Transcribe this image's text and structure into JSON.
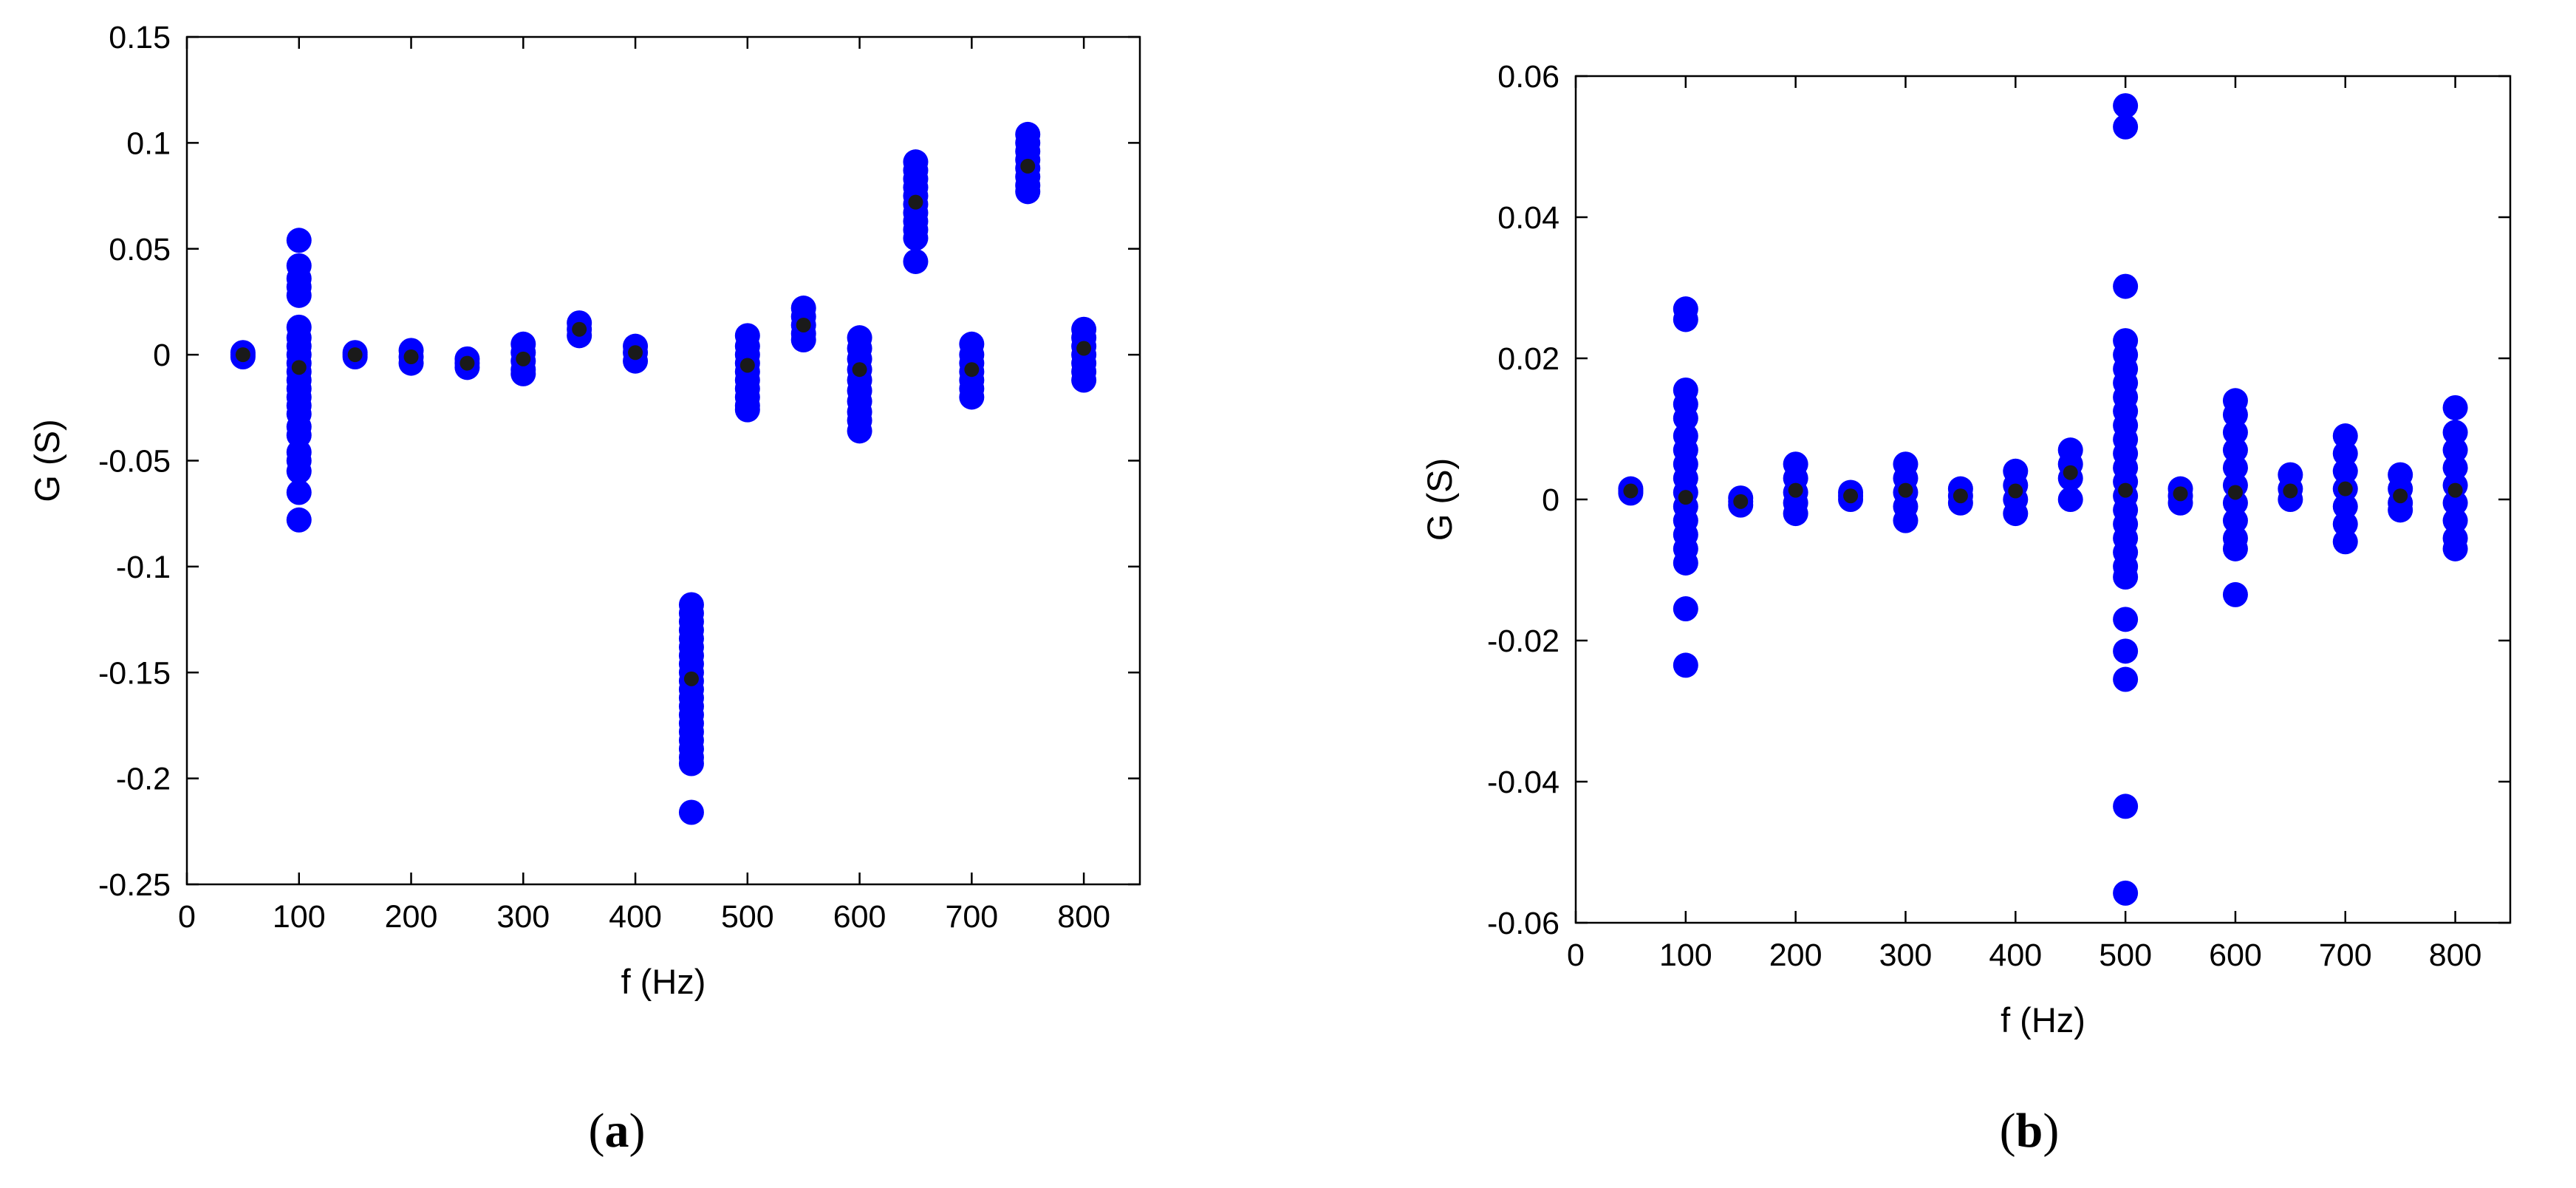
{
  "chart_data": [
    {
      "type": "scatter",
      "panel_label": "(a)",
      "panel_letter": "a",
      "xlabel": "f (Hz)",
      "ylabel": "G (S)",
      "xlim": [
        0,
        850
      ],
      "ylim": [
        -0.25,
        0.15
      ],
      "xticks": [
        0,
        100,
        200,
        300,
        400,
        500,
        600,
        700,
        800
      ],
      "xtick_labels": [
        "0",
        "100",
        "200",
        "300",
        "400",
        "500",
        "600",
        "700",
        "800"
      ],
      "yticks": [
        -0.25,
        -0.2,
        -0.15,
        -0.1,
        -0.05,
        0,
        0.05,
        0.1,
        0.15
      ],
      "ytick_labels": [
        "-0.25",
        "-0.2",
        "-0.15",
        "-0.1",
        "-0.05",
        "0",
        "0.05",
        "0.1",
        "0.15"
      ],
      "grid": false,
      "series": [
        {
          "role": "samples",
          "color": "#0000ff",
          "groups": [
            {
              "x": 50,
              "y": [
                -0.001,
                0.0,
                0.001
              ]
            },
            {
              "x": 100,
              "y": [
                0.054,
                0.042,
                0.036,
                0.032,
                0.028,
                0.013,
                0.008,
                0.004,
                0.0,
                -0.004,
                -0.008,
                -0.012,
                -0.016,
                -0.02,
                -0.024,
                -0.028,
                -0.034,
                -0.038,
                -0.046,
                -0.05,
                -0.055,
                -0.065,
                -0.078
              ]
            },
            {
              "x": 150,
              "y": [
                -0.001,
                0.0,
                0.001
              ]
            },
            {
              "x": 200,
              "y": [
                0.002,
                -0.001,
                -0.004
              ]
            },
            {
              "x": 250,
              "y": [
                -0.002,
                -0.004,
                -0.006
              ]
            },
            {
              "x": 300,
              "y": [
                0.005,
                0.001,
                -0.003,
                -0.007,
                -0.009
              ]
            },
            {
              "x": 350,
              "y": [
                0.015,
                0.012,
                0.009
              ]
            },
            {
              "x": 400,
              "y": [
                0.004,
                0.001,
                -0.003
              ]
            },
            {
              "x": 450,
              "y": [
                -0.118,
                -0.122,
                -0.126,
                -0.13,
                -0.134,
                -0.138,
                -0.142,
                -0.146,
                -0.15,
                -0.154,
                -0.158,
                -0.162,
                -0.166,
                -0.17,
                -0.174,
                -0.178,
                -0.182,
                -0.186,
                -0.19,
                -0.193,
                -0.216
              ]
            },
            {
              "x": 500,
              "y": [
                0.009,
                0.004,
                0.0,
                -0.004,
                -0.008,
                -0.012,
                -0.016,
                -0.02,
                -0.024,
                -0.026
              ]
            },
            {
              "x": 550,
              "y": [
                0.022,
                0.018,
                0.014,
                0.01,
                0.007
              ]
            },
            {
              "x": 600,
              "y": [
                0.008,
                0.003,
                -0.002,
                -0.007,
                -0.012,
                -0.017,
                -0.022,
                -0.027,
                -0.031,
                -0.036
              ]
            },
            {
              "x": 650,
              "y": [
                0.091,
                0.087,
                0.083,
                0.079,
                0.075,
                0.071,
                0.067,
                0.063,
                0.059,
                0.055,
                0.044
              ]
            },
            {
              "x": 700,
              "y": [
                0.005,
                0.0,
                -0.004,
                -0.008,
                -0.012,
                -0.016,
                -0.02
              ]
            },
            {
              "x": 750,
              "y": [
                0.104,
                0.1,
                0.096,
                0.092,
                0.088,
                0.084,
                0.08,
                0.077
              ]
            },
            {
              "x": 800,
              "y": [
                0.012,
                0.008,
                0.004,
                0.0,
                -0.004,
                -0.008,
                -0.012
              ]
            }
          ]
        },
        {
          "role": "mean",
          "color": "#1a1a1a",
          "points": [
            {
              "x": 50,
              "y": 0.0
            },
            {
              "x": 100,
              "y": -0.006
            },
            {
              "x": 150,
              "y": 0.0
            },
            {
              "x": 200,
              "y": -0.001
            },
            {
              "x": 250,
              "y": -0.004
            },
            {
              "x": 300,
              "y": -0.002
            },
            {
              "x": 350,
              "y": 0.012
            },
            {
              "x": 400,
              "y": 0.001
            },
            {
              "x": 450,
              "y": -0.153
            },
            {
              "x": 500,
              "y": -0.005
            },
            {
              "x": 550,
              "y": 0.014
            },
            {
              "x": 600,
              "y": -0.007
            },
            {
              "x": 650,
              "y": 0.072
            },
            {
              "x": 700,
              "y": -0.007
            },
            {
              "x": 750,
              "y": 0.089
            },
            {
              "x": 800,
              "y": 0.003
            }
          ]
        }
      ]
    },
    {
      "type": "scatter",
      "panel_label": "(b)",
      "panel_letter": "b",
      "xlabel": "f (Hz)",
      "ylabel": "G (S)",
      "xlim": [
        0,
        850
      ],
      "ylim": [
        -0.06,
        0.06
      ],
      "xticks": [
        0,
        100,
        200,
        300,
        400,
        500,
        600,
        700,
        800
      ],
      "xtick_labels": [
        "0",
        "100",
        "200",
        "300",
        "400",
        "500",
        "600",
        "700",
        "800"
      ],
      "yticks": [
        -0.06,
        -0.04,
        -0.02,
        0,
        0.02,
        0.04,
        0.06
      ],
      "ytick_labels": [
        "-0.06",
        "-0.04",
        "-0.02",
        "0",
        "0.02",
        "0.04",
        "0.06"
      ],
      "grid": false,
      "series": [
        {
          "role": "samples",
          "color": "#0000ff",
          "groups": [
            {
              "x": 50,
              "y": [
                0.0015,
                0.0012,
                0.0009
              ]
            },
            {
              "x": 100,
              "y": [
                0.027,
                0.0255,
                0.0155,
                0.0135,
                0.0115,
                0.009,
                0.007,
                0.005,
                0.003,
                0.001,
                -0.001,
                -0.003,
                -0.005,
                -0.007,
                -0.009,
                -0.0155,
                -0.0235
              ]
            },
            {
              "x": 150,
              "y": [
                0.0002,
                -0.0003,
                -0.0008
              ]
            },
            {
              "x": 200,
              "y": [
                0.005,
                0.003,
                0.001,
                -0.0005,
                -0.002
              ]
            },
            {
              "x": 250,
              "y": [
                0.001,
                0.0005,
                0.0
              ]
            },
            {
              "x": 300,
              "y": [
                0.005,
                0.003,
                0.001,
                -0.001,
                -0.003
              ]
            },
            {
              "x": 350,
              "y": [
                0.0015,
                0.0005,
                -0.0005
              ]
            },
            {
              "x": 400,
              "y": [
                0.004,
                0.002,
                0.0,
                -0.002
              ]
            },
            {
              "x": 450,
              "y": [
                0.007,
                0.005,
                0.003,
                0.0
              ]
            },
            {
              "x": 500,
              "y": [
                0.0558,
                0.0528,
                0.0302,
                0.0225,
                0.0205,
                0.0185,
                0.0165,
                0.0145,
                0.0125,
                0.0105,
                0.0085,
                0.0065,
                0.0045,
                0.0025,
                0.0005,
                -0.0015,
                -0.0035,
                -0.0055,
                -0.0075,
                -0.0095,
                -0.011,
                -0.017,
                -0.0215,
                -0.0255,
                -0.0435,
                -0.0558
              ]
            },
            {
              "x": 550,
              "y": [
                0.0015,
                0.0005,
                -0.0005
              ]
            },
            {
              "x": 600,
              "y": [
                0.014,
                0.012,
                0.0095,
                0.007,
                0.0045,
                0.002,
                -0.0005,
                -0.003,
                -0.0055,
                -0.007,
                -0.0135
              ]
            },
            {
              "x": 650,
              "y": [
                0.0035,
                0.0015,
                0.0
              ]
            },
            {
              "x": 700,
              "y": [
                0.009,
                0.0065,
                0.004,
                0.0015,
                -0.001,
                -0.0035,
                -0.006
              ]
            },
            {
              "x": 750,
              "y": [
                0.0035,
                0.0015,
                -0.0005,
                -0.0015
              ]
            },
            {
              "x": 800,
              "y": [
                0.013,
                0.0095,
                0.007,
                0.0045,
                0.002,
                -0.0005,
                -0.003,
                -0.0055,
                -0.007
              ]
            }
          ]
        },
        {
          "role": "mean",
          "color": "#1a1a1a",
          "points": [
            {
              "x": 50,
              "y": 0.0012
            },
            {
              "x": 100,
              "y": 0.0003
            },
            {
              "x": 150,
              "y": -0.0003
            },
            {
              "x": 200,
              "y": 0.0013
            },
            {
              "x": 250,
              "y": 0.0005
            },
            {
              "x": 300,
              "y": 0.0013
            },
            {
              "x": 350,
              "y": 0.0005
            },
            {
              "x": 400,
              "y": 0.0012
            },
            {
              "x": 450,
              "y": 0.0038
            },
            {
              "x": 500,
              "y": 0.0013
            },
            {
              "x": 550,
              "y": 0.0008
            },
            {
              "x": 600,
              "y": 0.001
            },
            {
              "x": 650,
              "y": 0.0012
            },
            {
              "x": 700,
              "y": 0.0015
            },
            {
              "x": 750,
              "y": 0.0005
            },
            {
              "x": 800,
              "y": 0.0013
            }
          ]
        }
      ]
    }
  ]
}
